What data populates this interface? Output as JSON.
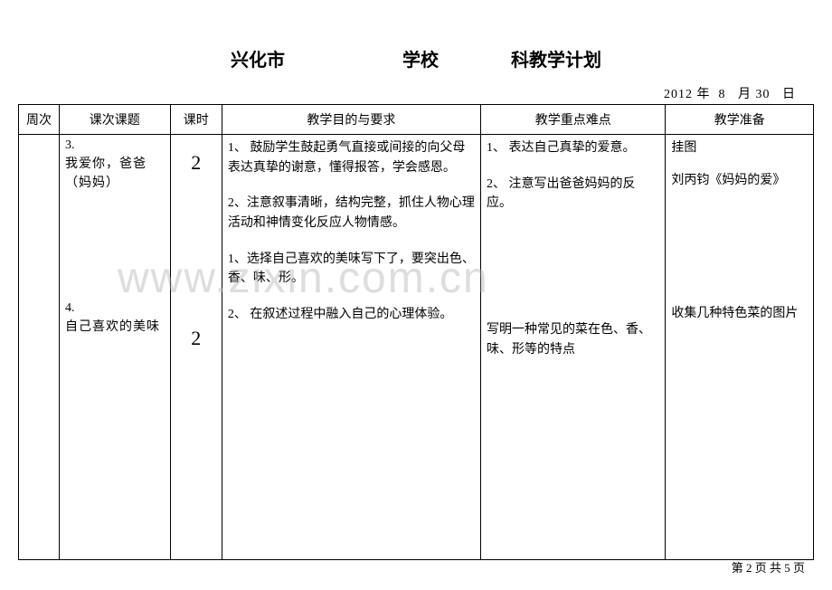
{
  "header": {
    "city": "兴化市",
    "school_label": "学校",
    "plan_label": "科教学计划"
  },
  "date": {
    "year": "2012",
    "year_unit": "年",
    "month": "8",
    "month_unit": "月",
    "day": "30",
    "day_unit": "日"
  },
  "columns": {
    "c1": "周次",
    "c2": "课次课题",
    "c3": "课时",
    "c4": "教学目的与要求",
    "c5": "教学重点难点",
    "c6": "教学准备"
  },
  "lessons": [
    {
      "num": "3.",
      "title": "我爱你，爸爸（妈妈）",
      "hours": "2",
      "objectives": [
        "1、 鼓励学生鼓起勇气直接或间接的向父母表达真挚的谢意，懂得报答，学会感恩。",
        "2、注意叙事清晰，结构完整，抓住人物心理活动和神情变化反应人物情感。"
      ],
      "keypoints": [
        "1、 表达自己真挚的爱意。",
        "2、 注意写出爸爸妈妈的反应。"
      ],
      "prep": [
        "挂图",
        "刘丙钧《妈妈的爱》"
      ]
    },
    {
      "num": "4.",
      "title": "自己喜欢的美味",
      "hours": "2",
      "objectives": [
        "1、选择自己喜欢的美味写下了，要突出色、香、味、形。",
        "2、 在叙述过程中融入自己的心理体验。"
      ],
      "keypoints": [
        "写明一种常见的菜在色、香、味、形等的特点"
      ],
      "prep": [
        "收集几种特色菜的图片"
      ]
    }
  ],
  "watermark": "www.zixin.com.cn",
  "footer": {
    "prefix": "第",
    "page": "2",
    "mid": "页 共",
    "total": "5",
    "suffix": "页"
  }
}
